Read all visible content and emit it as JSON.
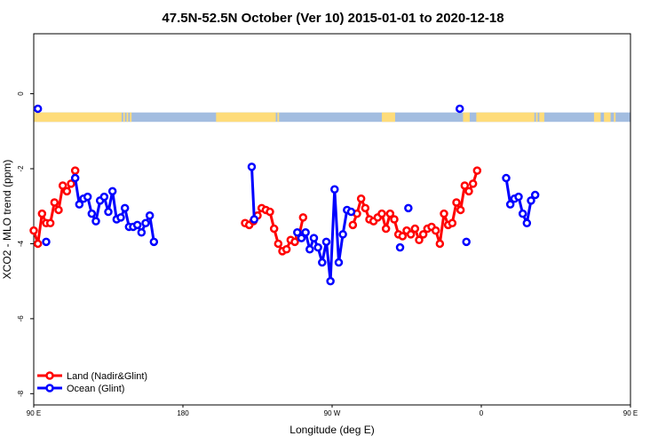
{
  "chart_data": {
    "type": "line",
    "title": "47.5N-52.5N October (Ver 10)   2015-01-01 to 2020-12-18",
    "xlabel": "Longitude (deg E)",
    "ylabel": "XCO2 - MLO trend (ppm)",
    "xlim": [
      90,
      450
    ],
    "ylim": [
      -8.3,
      1.6
    ],
    "x_ticks": [
      {
        "value": 90,
        "label": "90 E"
      },
      {
        "value": 180,
        "label": "180"
      },
      {
        "value": 270,
        "label": "90 W"
      },
      {
        "value": 360,
        "label": "0"
      },
      {
        "value": 450,
        "label": "90 E"
      }
    ],
    "y_ticks": [
      {
        "value": 0,
        "label": "0"
      },
      {
        "value": -2,
        "label": "-2"
      },
      {
        "value": -4,
        "label": "-4"
      },
      {
        "value": -6,
        "label": "-6"
      },
      {
        "value": -8,
        "label": "-8"
      }
    ],
    "legend_position": "bottom-left",
    "grid": false,
    "surface_strip": {
      "y_top": -0.5,
      "y_bottom": -0.75,
      "land_color": "#fedc7a",
      "ocean_color": "#a3bde0",
      "land_ranges": [
        [
          90,
          143
        ],
        [
          144,
          145
        ],
        [
          146,
          147
        ],
        [
          148,
          149
        ],
        [
          200,
          236
        ],
        [
          237,
          238
        ],
        [
          300,
          308
        ],
        [
          349,
          353
        ],
        [
          357,
          392
        ],
        [
          393,
          394
        ],
        [
          395,
          398
        ],
        [
          428,
          432
        ],
        [
          434,
          438
        ],
        [
          440,
          441
        ]
      ]
    },
    "series": [
      {
        "name": "Land (Nadir&Glint)",
        "color": "#ff0000",
        "segments": [
          [
            [
              90,
              -3.65
            ],
            [
              92.5,
              -4.0
            ],
            [
              95,
              -3.2
            ],
            [
              97.5,
              -3.45
            ],
            [
              100,
              -3.45
            ],
            [
              102.5,
              -2.9
            ],
            [
              105,
              -3.1
            ],
            [
              107.5,
              -2.45
            ],
            [
              110,
              -2.6
            ],
            [
              112.5,
              -2.4
            ],
            [
              115,
              -2.05
            ]
          ],
          [
            [
              217.5,
              -3.45
            ],
            [
              220,
              -3.5
            ],
            [
              222.5,
              -3.4
            ],
            [
              225,
              -3.25
            ],
            [
              227.5,
              -3.05
            ],
            [
              230,
              -3.1
            ],
            [
              232.5,
              -3.15
            ],
            [
              235,
              -3.6
            ],
            [
              237.5,
              -4.0
            ],
            [
              240,
              -4.2
            ],
            [
              242.5,
              -4.15
            ],
            [
              245,
              -3.9
            ],
            [
              247.5,
              -3.95
            ],
            [
              250,
              -3.8
            ],
            [
              252.5,
              -3.3
            ]
          ],
          [
            [
              282.5,
              -3.5
            ],
            [
              285,
              -3.2
            ],
            [
              287.5,
              -2.8
            ],
            [
              290,
              -3.05
            ],
            [
              292.5,
              -3.35
            ],
            [
              295,
              -3.4
            ],
            [
              297.5,
              -3.3
            ],
            [
              300,
              -3.2
            ],
            [
              302.5,
              -3.6
            ],
            [
              305,
              -3.2
            ],
            [
              307.5,
              -3.35
            ],
            [
              310,
              -3.75
            ],
            [
              312.5,
              -3.8
            ],
            [
              315,
              -3.65
            ],
            [
              317.5,
              -3.75
            ],
            [
              320,
              -3.6
            ],
            [
              322.5,
              -3.9
            ],
            [
              325,
              -3.75
            ],
            [
              327.5,
              -3.6
            ],
            [
              330,
              -3.55
            ],
            [
              332.5,
              -3.65
            ],
            [
              335,
              -4.0
            ],
            [
              337.5,
              -3.2
            ],
            [
              340,
              -3.5
            ],
            [
              342.5,
              -3.45
            ],
            [
              345,
              -2.9
            ],
            [
              347.5,
              -3.1
            ],
            [
              350,
              -2.45
            ],
            [
              352.5,
              -2.6
            ],
            [
              355,
              -2.4
            ],
            [
              357.5,
              -2.05
            ]
          ]
        ]
      },
      {
        "name": "Ocean (Glint)",
        "color": "#0000ff",
        "segments": [
          [
            [
              92.5,
              -0.4
            ]
          ],
          [
            [
              97.5,
              -3.95
            ]
          ],
          [
            [
              115,
              -2.25
            ],
            [
              117.5,
              -2.95
            ],
            [
              120,
              -2.8
            ],
            [
              122.5,
              -2.75
            ],
            [
              125,
              -3.2
            ],
            [
              127.5,
              -3.4
            ],
            [
              130,
              -2.85
            ],
            [
              132.5,
              -2.75
            ],
            [
              135,
              -3.15
            ],
            [
              137.5,
              -2.6
            ],
            [
              140,
              -3.35
            ],
            [
              142.5,
              -3.3
            ],
            [
              145,
              -3.05
            ],
            [
              147.5,
              -3.55
            ],
            [
              150,
              -3.55
            ],
            [
              152.5,
              -3.5
            ],
            [
              155,
              -3.7
            ],
            [
              157.5,
              -3.45
            ],
            [
              160,
              -3.25
            ],
            [
              162.5,
              -3.95
            ]
          ],
          [
            [
              221.5,
              -1.95
            ],
            [
              223,
              -3.35
            ]
          ],
          [
            [
              249,
              -3.7
            ],
            [
              251.5,
              -3.85
            ],
            [
              254,
              -3.7
            ],
            [
              256.5,
              -4.15
            ],
            [
              259,
              -3.85
            ],
            [
              261.5,
              -4.1
            ],
            [
              264,
              -4.5
            ],
            [
              266.5,
              -3.95
            ],
            [
              269,
              -5.0
            ],
            [
              271.5,
              -2.55
            ],
            [
              274,
              -4.5
            ],
            [
              276.5,
              -3.75
            ],
            [
              279,
              -3.1
            ],
            [
              281.5,
              -3.15
            ]
          ],
          [
            [
              311,
              -4.1
            ]
          ],
          [
            [
              316,
              -3.05
            ]
          ],
          [
            [
              347,
              -0.4
            ]
          ],
          [
            [
              351,
              -3.95
            ]
          ],
          [
            [
              375,
              -2.25
            ],
            [
              377.5,
              -2.95
            ],
            [
              380,
              -2.8
            ],
            [
              382.5,
              -2.75
            ],
            [
              385,
              -3.2
            ],
            [
              387.5,
              -3.45
            ],
            [
              390,
              -2.85
            ],
            [
              392.5,
              -2.7
            ]
          ]
        ]
      }
    ]
  }
}
